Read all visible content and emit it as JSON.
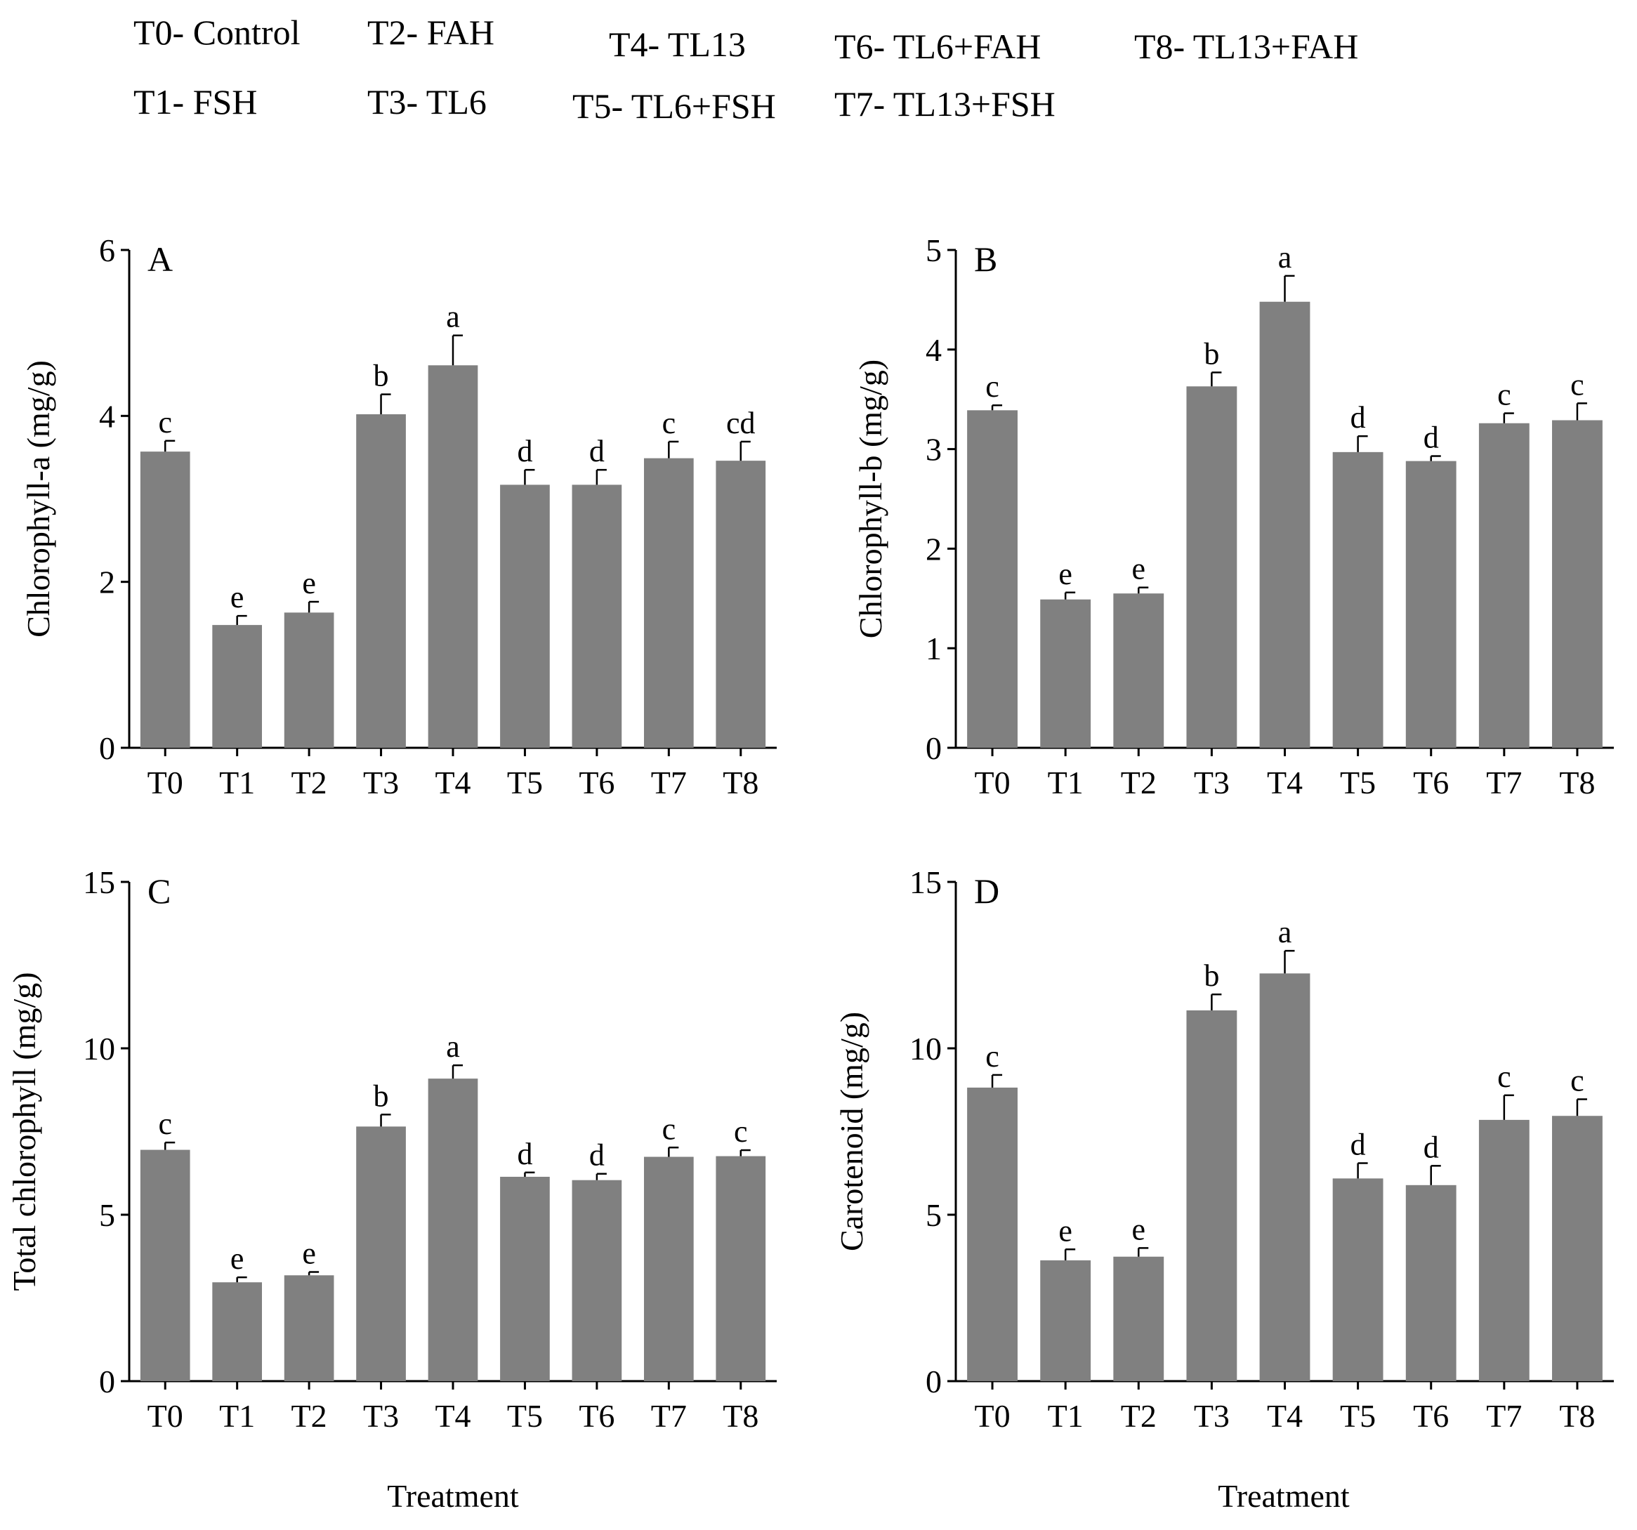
{
  "legend": [
    {
      "code": "T0",
      "label": "T0- Control"
    },
    {
      "code": "T1",
      "label": "T1- FSH"
    },
    {
      "code": "T2",
      "label": "T2- FAH"
    },
    {
      "code": "T3",
      "label": "T3- TL6"
    },
    {
      "code": "T4",
      "label": "T4- TL13"
    },
    {
      "code": "T5",
      "label": "T5- TL6+FSH"
    },
    {
      "code": "T6",
      "label": "T6- TL6+FAH"
    },
    {
      "code": "T7",
      "label": "T7- TL13+FSH"
    },
    {
      "code": "T8",
      "label": "T8- TL13+FAH"
    }
  ],
  "bar_color": "#808080",
  "chart_data": [
    {
      "type": "bar",
      "panel": "A",
      "title": "",
      "xlabel": "",
      "ylabel": "Chlorophyll-a (mg/g)",
      "ylim": [
        0,
        6
      ],
      "yticks": [
        0,
        2,
        4,
        6
      ],
      "categories": [
        "T0",
        "T1",
        "T2",
        "T3",
        "T4",
        "T5",
        "T6",
        "T7",
        "T8"
      ],
      "values": [
        3.57,
        1.48,
        1.63,
        4.02,
        4.61,
        3.17,
        3.17,
        3.49,
        3.46
      ],
      "errors": [
        0.13,
        0.11,
        0.13,
        0.24,
        0.36,
        0.18,
        0.18,
        0.2,
        0.23
      ],
      "letters": [
        "c",
        "e",
        "e",
        "b",
        "a",
        "d",
        "d",
        "c",
        "cd"
      ]
    },
    {
      "type": "bar",
      "panel": "B",
      "title": "",
      "xlabel": "",
      "ylabel": "Chlorophyll-b (mg/g)",
      "ylim": [
        0,
        5
      ],
      "yticks": [
        0,
        1,
        2,
        3,
        4,
        5
      ],
      "categories": [
        "T0",
        "T1",
        "T2",
        "T3",
        "T4",
        "T5",
        "T6",
        "T7",
        "T8"
      ],
      "values": [
        3.39,
        1.49,
        1.55,
        3.63,
        4.48,
        2.97,
        2.88,
        3.26,
        3.29
      ],
      "errors": [
        0.05,
        0.07,
        0.06,
        0.14,
        0.26,
        0.16,
        0.05,
        0.1,
        0.17
      ],
      "letters": [
        "c",
        "e",
        "e",
        "b",
        "a",
        "d",
        "d",
        "c",
        "c"
      ]
    },
    {
      "type": "bar",
      "panel": "C",
      "title": "",
      "xlabel": "Treatment",
      "ylabel": "Total chlorophyll (mg/g)",
      "ylim": [
        0,
        15
      ],
      "yticks": [
        0,
        5,
        10,
        15
      ],
      "categories": [
        "T0",
        "T1",
        "T2",
        "T3",
        "T4",
        "T5",
        "T6",
        "T7",
        "T8"
      ],
      "values": [
        6.95,
        2.97,
        3.18,
        7.65,
        9.09,
        6.14,
        6.04,
        6.74,
        6.76
      ],
      "errors": [
        0.22,
        0.15,
        0.1,
        0.36,
        0.4,
        0.13,
        0.19,
        0.28,
        0.18
      ],
      "letters": [
        "c",
        "e",
        "e",
        "b",
        "a",
        "d",
        "d",
        "c",
        "c"
      ]
    },
    {
      "type": "bar",
      "panel": "D",
      "title": "",
      "xlabel": "Treatment",
      "ylabel": "Carotenoid (mg/g)",
      "ylim": [
        0,
        15
      ],
      "yticks": [
        0,
        5,
        10,
        15
      ],
      "categories": [
        "T0",
        "T1",
        "T2",
        "T3",
        "T4",
        "T5",
        "T6",
        "T7",
        "T8"
      ],
      "values": [
        8.82,
        3.63,
        3.74,
        11.14,
        12.25,
        6.09,
        5.89,
        7.85,
        7.97
      ],
      "errors": [
        0.38,
        0.33,
        0.26,
        0.48,
        0.68,
        0.46,
        0.58,
        0.74,
        0.5
      ],
      "letters": [
        "c",
        "e",
        "e",
        "b",
        "a",
        "d",
        "d",
        "c",
        "c"
      ]
    }
  ]
}
